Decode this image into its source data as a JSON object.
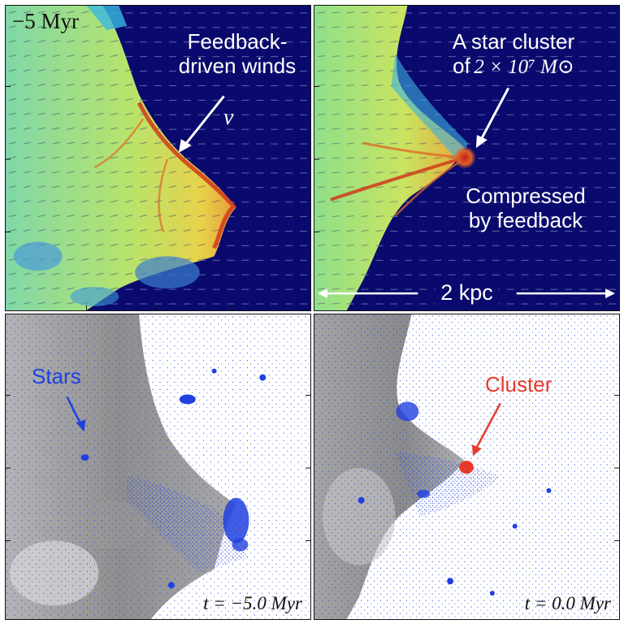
{
  "panels": {
    "top_left": {
      "time_label": "−5 Myr",
      "winds_label_line1": "Feedback-",
      "winds_label_line2": "driven winds",
      "velocity_symbol": "v"
    },
    "top_right": {
      "cluster_label_line1": "A star cluster",
      "cluster_label_line2_prefix": "of",
      "cluster_mass": "2 × 10⁷ M⊙",
      "compressed_label_line1": "Compressed",
      "compressed_label_line2": "by feedback",
      "scale_label": "2 kpc"
    },
    "bottom_left": {
      "stars_label": "Stars",
      "time_text": "t = −5.0 Myr"
    },
    "bottom_right": {
      "cluster_label": "Cluster",
      "time_text": "t = 0.0 Myr"
    }
  },
  "colors": {
    "background_navy": "#0a0a6e",
    "gas_green": "#8fe08a",
    "gas_yellow": "#e8e25a",
    "gas_red": "#d03a1c",
    "stars_blue": "#2040e0",
    "cluster_red": "#e83a2a",
    "gas_gray": "#8a8a8a"
  }
}
